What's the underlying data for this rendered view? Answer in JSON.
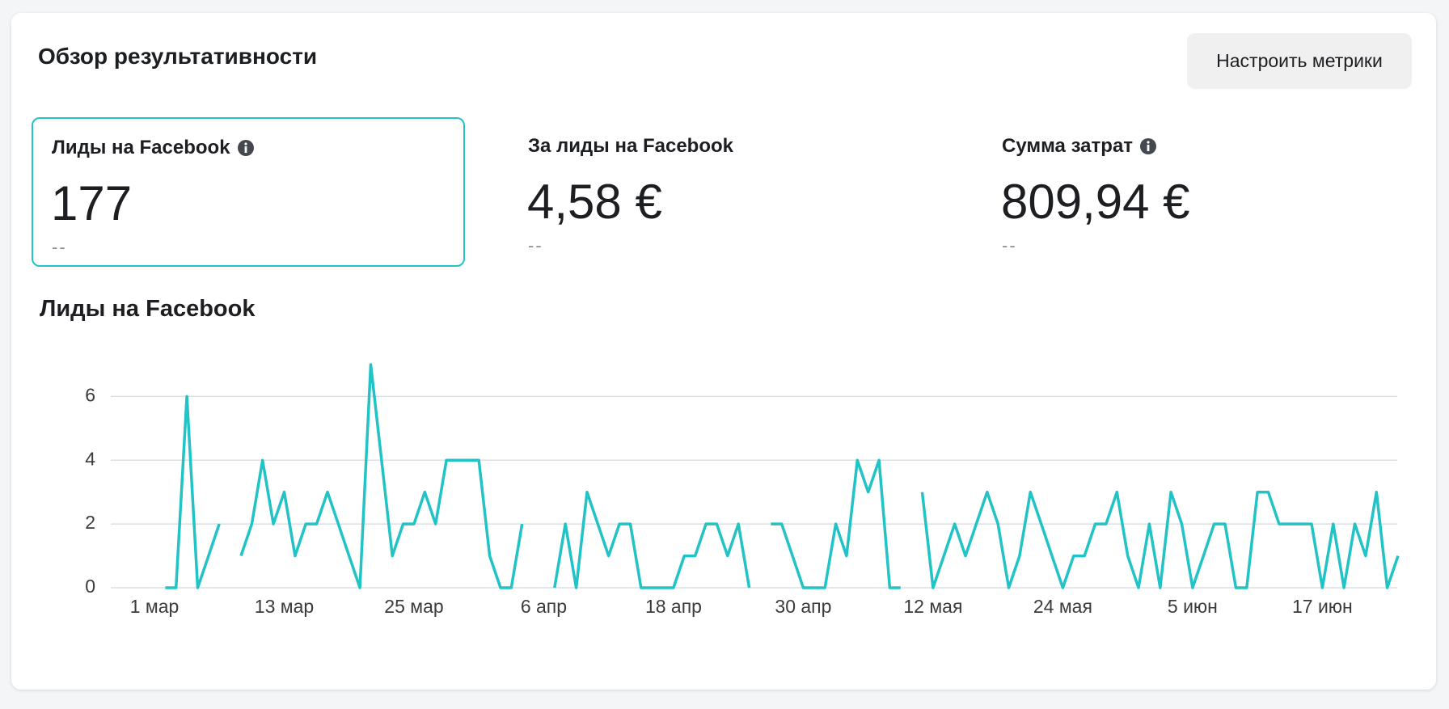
{
  "header": {
    "title": "Обзор результативности",
    "button": "Настроить метрики"
  },
  "metrics": [
    {
      "label": "Лиды на Facebook",
      "value": "177",
      "delta": "--",
      "info": true,
      "selected": true
    },
    {
      "label": "За лиды на Facebook",
      "value": "4,58 €",
      "delta": "--",
      "info": false,
      "selected": false
    },
    {
      "label": "Сумма затрат",
      "value": "809,94 €",
      "delta": "--",
      "info": true,
      "selected": false
    }
  ],
  "chart_data": {
    "type": "line",
    "title": "Лиды на Facebook",
    "categories": [
      "1 мар",
      null,
      null,
      null,
      null,
      null,
      null,
      null,
      null,
      null,
      null,
      null,
      "13 мар",
      null,
      null,
      null,
      null,
      null,
      null,
      null,
      null,
      null,
      null,
      null,
      "25 мар",
      null,
      null,
      null,
      null,
      null,
      null,
      null,
      null,
      null,
      null,
      null,
      "6 апр",
      null,
      null,
      null,
      null,
      null,
      null,
      null,
      null,
      null,
      null,
      null,
      "18 апр",
      null,
      null,
      null,
      null,
      null,
      null,
      null,
      null,
      null,
      null,
      null,
      "30 апр",
      null,
      null,
      null,
      null,
      null,
      null,
      null,
      null,
      null,
      null,
      null,
      "12 мая",
      null,
      null,
      null,
      null,
      null,
      null,
      null,
      null,
      null,
      null,
      null,
      "24 мая",
      null,
      null,
      null,
      null,
      null,
      null,
      null,
      null,
      null,
      null,
      null,
      "5 июн",
      null,
      null,
      null,
      null,
      null,
      null,
      null,
      null,
      null,
      null,
      null,
      "17 июн",
      null,
      null,
      null,
      null,
      null,
      null,
      null
    ],
    "values": [
      null,
      0,
      0,
      6,
      0,
      1,
      2,
      null,
      1,
      2,
      4,
      2,
      3,
      1,
      2,
      2,
      3,
      2,
      1,
      0,
      7,
      4,
      1,
      2,
      2,
      3,
      2,
      4,
      4,
      4,
      4,
      1,
      0,
      0,
      2,
      null,
      null,
      0,
      2,
      0,
      3,
      2,
      1,
      2,
      2,
      0,
      0,
      0,
      0,
      1,
      1,
      2,
      2,
      1,
      2,
      0,
      null,
      2,
      2,
      1,
      0,
      0,
      0,
      2,
      1,
      4,
      3,
      4,
      0,
      0,
      null,
      3,
      0,
      1,
      2,
      1,
      2,
      3,
      2,
      0,
      1,
      3,
      2,
      1,
      0,
      1,
      1,
      2,
      2,
      3,
      1,
      0,
      2,
      0,
      3,
      2,
      0,
      1,
      2,
      2,
      0,
      0,
      3,
      3,
      2,
      2,
      2,
      2,
      0,
      2,
      0,
      2,
      1,
      3,
      0,
      1
    ],
    "color": "#22c3c6",
    "ylim": [
      0,
      7
    ],
    "yticks": [
      0,
      2,
      4,
      6
    ],
    "grid": true
  }
}
